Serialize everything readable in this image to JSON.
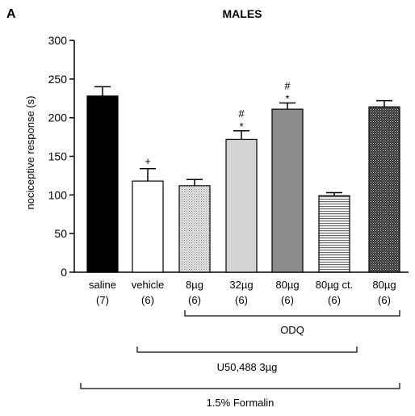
{
  "chart_data": {
    "type": "bar",
    "panel_label": "A",
    "title": "MALES",
    "ylabel": "nociceptive response (s)",
    "ylim": [
      0,
      300
    ],
    "yticks": [
      0,
      50,
      100,
      150,
      200,
      250,
      300
    ],
    "categories": [
      "saline",
      "vehicle",
      "8µg",
      "32µg",
      "80µg",
      "80µg ct.",
      "80µg"
    ],
    "n_labels": [
      "(7)",
      "(6)",
      "(6)",
      "(6)",
      "(6)",
      "(6)",
      "(6)"
    ],
    "values": [
      228,
      118,
      112,
      172,
      211,
      99,
      214
    ],
    "errors": [
      12,
      16,
      8,
      11,
      8,
      4,
      8
    ],
    "bar_styles": [
      "black",
      "white",
      "light-dotted",
      "light-gray",
      "medium-gray",
      "horizontal-lines",
      "dark-dotted"
    ],
    "significance": [
      {
        "bar": 1,
        "marks": [
          "+"
        ]
      },
      {
        "bar": 3,
        "marks": [
          "#",
          "*"
        ]
      },
      {
        "bar": 4,
        "marks": [
          "#",
          "*"
        ]
      }
    ],
    "groups": [
      {
        "label": "ODQ",
        "from": 2,
        "to": 6
      },
      {
        "label": "U50,488 3µg",
        "from": 1,
        "to": 5
      },
      {
        "label": "1.5% Formalin",
        "from": 0,
        "to": 6
      }
    ],
    "grid": false,
    "legend": "none"
  }
}
